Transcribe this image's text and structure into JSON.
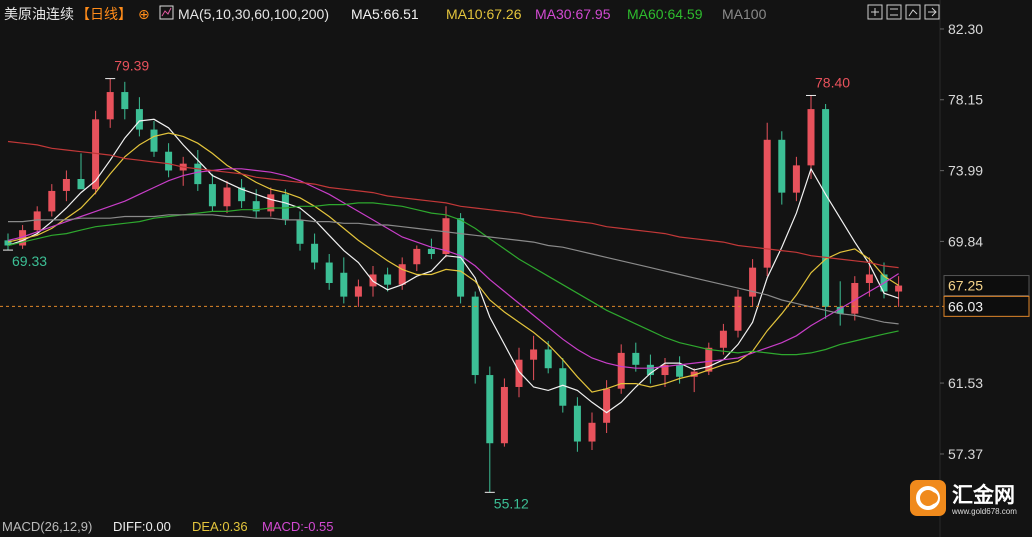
{
  "header": {
    "symbol": "美原油连续",
    "period": "【日线】",
    "ma_title": "MA(5,10,30,60,100,200)",
    "ma_items": [
      "MA5:66.51",
      "MA10:67.26",
      "MA30:67.95",
      "MA60:64.59",
      "MA100"
    ]
  },
  "chart_data": {
    "type": "candlestick",
    "ylim": [
      52.5,
      84.0
    ],
    "yticks": [
      {
        "value": 82.3,
        "label": "82.30"
      },
      78.15,
      73.99,
      69.84,
      61.53,
      57.37
    ],
    "up_color": "#e8525c",
    "down_color": "#3cbf95",
    "open": [
      69.9,
      69.6,
      70.5,
      71.6,
      72.8,
      73.5,
      72.9,
      77.0,
      78.6,
      77.6,
      76.4,
      75.1,
      74.0,
      74.4,
      73.2,
      71.9,
      73.0,
      72.2,
      71.6,
      72.6,
      71.1,
      69.7,
      68.6,
      68.0,
      66.6,
      67.2,
      67.9,
      67.3,
      68.5,
      69.4,
      69.1,
      71.2,
      66.6,
      62.0,
      58.0,
      61.3,
      62.9,
      63.5,
      62.4,
      60.2,
      58.1,
      59.2,
      61.2,
      63.3,
      62.6,
      62.0,
      62.6,
      61.9,
      62.2,
      63.6,
      64.6,
      66.6,
      68.3,
      75.8,
      72.7,
      74.3,
      77.6,
      66.0,
      65.6,
      67.4,
      67.9,
      66.9
    ],
    "high": [
      70.3,
      70.8,
      71.9,
      73.2,
      74.0,
      75.0,
      77.5,
      79.39,
      79.2,
      78.3,
      76.9,
      75.6,
      74.8,
      75.2,
      73.8,
      73.4,
      73.5,
      72.9,
      73.0,
      72.9,
      71.6,
      70.3,
      69.1,
      68.9,
      67.6,
      68.4,
      68.3,
      68.9,
      69.6,
      70.0,
      71.9,
      71.5,
      66.9,
      62.5,
      61.8,
      63.6,
      64.3,
      64.0,
      63.0,
      60.7,
      59.8,
      61.7,
      63.8,
      63.9,
      63.2,
      63.0,
      63.1,
      62.4,
      63.9,
      65.0,
      67.0,
      68.8,
      76.8,
      76.3,
      74.8,
      78.4,
      77.9,
      67.5,
      67.8,
      68.9,
      68.6,
      67.8
    ],
    "low": [
      69.33,
      69.4,
      70.2,
      71.3,
      72.2,
      73.0,
      72.6,
      76.5,
      77.0,
      76.0,
      74.8,
      73.6,
      73.1,
      72.8,
      71.6,
      71.5,
      71.8,
      71.2,
      71.3,
      70.8,
      69.3,
      68.2,
      67.0,
      66.2,
      66.0,
      66.6,
      66.9,
      67.0,
      68.1,
      68.8,
      68.9,
      66.2,
      61.5,
      55.12,
      57.8,
      60.7,
      61.7,
      62.1,
      59.8,
      57.5,
      57.6,
      58.6,
      60.9,
      62.2,
      61.5,
      61.3,
      61.5,
      61.0,
      62.0,
      63.2,
      64.2,
      66.0,
      67.8,
      72.0,
      72.2,
      73.5,
      65.3,
      64.9,
      65.2,
      66.6,
      66.5,
      66.0
    ],
    "close": [
      69.6,
      70.5,
      71.6,
      72.8,
      73.5,
      72.9,
      77.0,
      78.6,
      77.6,
      76.4,
      75.1,
      74.0,
      74.4,
      73.2,
      71.9,
      73.0,
      72.2,
      71.6,
      72.6,
      71.1,
      69.7,
      68.6,
      67.4,
      66.6,
      67.2,
      67.9,
      67.3,
      68.5,
      69.4,
      69.1,
      71.2,
      66.6,
      62.0,
      58.0,
      61.3,
      62.9,
      63.5,
      62.4,
      60.2,
      58.1,
      59.2,
      61.2,
      63.3,
      62.6,
      62.0,
      62.6,
      61.9,
      62.2,
      63.6,
      64.6,
      66.6,
      68.3,
      75.8,
      72.7,
      74.3,
      77.6,
      66.0,
      65.6,
      67.4,
      67.9,
      66.9,
      67.25
    ],
    "series": [
      {
        "color": "#f2f2f2",
        "values": [
          69.6,
          69.9,
          70.3,
          71.0,
          71.8,
          72.7,
          73.4,
          74.6,
          75.9,
          76.9,
          77.0,
          76.5,
          75.5,
          74.6,
          73.7,
          73.3,
          72.9,
          72.6,
          72.3,
          72.1,
          71.8,
          71.1,
          70.2,
          69.3,
          68.6,
          67.5,
          67.0,
          67.3,
          67.8,
          68.1,
          69.0,
          68.9,
          67.7,
          65.4,
          63.8,
          62.2,
          61.3,
          61.1,
          61.4,
          61.1,
          60.4,
          59.8,
          60.4,
          61.3,
          62.1,
          62.7,
          62.7,
          62.3,
          62.5,
          62.9,
          63.8,
          65.1,
          67.7,
          69.5,
          71.5,
          74.1,
          72.6,
          71.2,
          69.8,
          68.5,
          66.8,
          66.51
        ]
      },
      {
        "color": "#e3c43c",
        "values": [
          69.8,
          70.0,
          70.2,
          70.6,
          71.2,
          71.8,
          72.7,
          73.8,
          74.8,
          75.5,
          76.0,
          76.2,
          76.0,
          75.6,
          75.0,
          74.3,
          73.8,
          73.3,
          72.9,
          72.7,
          72.4,
          71.9,
          71.3,
          70.6,
          69.9,
          69.3,
          68.7,
          68.2,
          67.9,
          67.9,
          68.2,
          68.1,
          67.5,
          66.4,
          65.7,
          65.1,
          64.5,
          63.8,
          62.9,
          61.9,
          61.0,
          61.2,
          61.5,
          61.5,
          61.3,
          61.5,
          61.8,
          62.0,
          62.3,
          62.6,
          62.8,
          63.4,
          64.6,
          65.6,
          66.7,
          68.0,
          68.8,
          69.2,
          69.4,
          68.8,
          67.8,
          67.26
        ]
      },
      {
        "color": "#c83ec8",
        "values": [
          69.9,
          70.1,
          70.4,
          70.7,
          71.0,
          71.3,
          71.6,
          71.9,
          72.2,
          72.6,
          73.0,
          73.4,
          73.7,
          73.9,
          74.0,
          74.1,
          74.1,
          74.0,
          73.9,
          73.7,
          73.4,
          73.0,
          72.6,
          72.1,
          71.6,
          71.1,
          70.6,
          70.1,
          69.8,
          69.5,
          69.3,
          69.0,
          68.4,
          67.6,
          66.9,
          66.2,
          65.5,
          64.8,
          64.1,
          63.5,
          63.0,
          62.7,
          62.5,
          62.4,
          62.4,
          62.5,
          62.6,
          62.7,
          62.8,
          62.9,
          63.0,
          63.3,
          63.6,
          63.9,
          64.3,
          64.9,
          65.4,
          65.9,
          66.4,
          66.9,
          67.4,
          67.95
        ]
      },
      {
        "color": "#2ea82e",
        "values": [
          69.6,
          69.8,
          70.0,
          70.2,
          70.3,
          70.5,
          70.7,
          70.8,
          70.9,
          71.0,
          71.2,
          71.3,
          71.4,
          71.5,
          71.6,
          71.6,
          71.7,
          71.7,
          71.8,
          71.8,
          71.9,
          71.9,
          72.0,
          72.0,
          72.1,
          72.1,
          72.0,
          71.9,
          71.7,
          71.5,
          71.4,
          71.1,
          70.6,
          70.0,
          69.4,
          68.8,
          68.3,
          67.8,
          67.3,
          66.8,
          66.3,
          65.8,
          65.4,
          65.0,
          64.6,
          64.2,
          63.9,
          63.7,
          63.5,
          63.4,
          63.3,
          63.4,
          63.3,
          63.2,
          63.2,
          63.3,
          63.5,
          63.8,
          64.0,
          64.2,
          64.4,
          64.59
        ]
      },
      {
        "color": "#8a8a8a",
        "values": [
          71.0,
          71.0,
          71.1,
          71.1,
          71.1,
          71.2,
          71.2,
          71.2,
          71.3,
          71.3,
          71.3,
          71.4,
          71.4,
          71.4,
          71.4,
          71.3,
          71.3,
          71.2,
          71.2,
          71.1,
          71.1,
          71.0,
          71.0,
          70.9,
          70.9,
          70.8,
          70.8,
          70.7,
          70.6,
          70.5,
          70.4,
          70.3,
          70.2,
          70.1,
          70.0,
          69.9,
          69.8,
          69.6,
          69.5,
          69.3,
          69.1,
          68.9,
          68.7,
          68.5,
          68.3,
          68.1,
          67.9,
          67.7,
          67.5,
          67.3,
          67.1,
          66.9,
          66.7,
          66.4,
          66.2,
          66.0,
          65.8,
          65.6,
          65.5,
          65.3,
          65.1,
          65.0
        ]
      },
      {
        "color": "#c23838",
        "values": [
          75.7,
          75.6,
          75.5,
          75.3,
          75.2,
          75.1,
          75.0,
          74.9,
          74.7,
          74.6,
          74.5,
          74.4,
          74.2,
          74.1,
          74.0,
          73.9,
          73.8,
          73.6,
          73.5,
          73.4,
          73.3,
          73.2,
          73.0,
          72.9,
          72.8,
          72.7,
          72.5,
          72.4,
          72.3,
          72.2,
          72.1,
          71.9,
          71.8,
          71.7,
          71.6,
          71.5,
          71.3,
          71.2,
          71.1,
          71.0,
          70.9,
          70.7,
          70.6,
          70.5,
          70.4,
          70.3,
          70.1,
          70.0,
          69.9,
          69.8,
          69.6,
          69.5,
          69.4,
          69.3,
          69.2,
          69.0,
          68.9,
          68.8,
          68.7,
          68.6,
          68.4,
          68.3
        ]
      }
    ],
    "annotations": [
      {
        "value": 79.39,
        "label": "79.39"
      },
      {
        "value": 69.33,
        "label": "69.33"
      },
      {
        "value": 55.12,
        "label": "55.12"
      },
      {
        "value": 78.4,
        "label": "78.40"
      }
    ],
    "price_labels": [
      67.25,
      66.03
    ]
  },
  "footer": {
    "items": [
      "MACD(26,12,9)",
      "DIFF:0.00",
      "DEA:0.36",
      "MACD:-0.55"
    ]
  },
  "logo": {
    "name": "汇金网",
    "url": "www.gold678.com"
  }
}
